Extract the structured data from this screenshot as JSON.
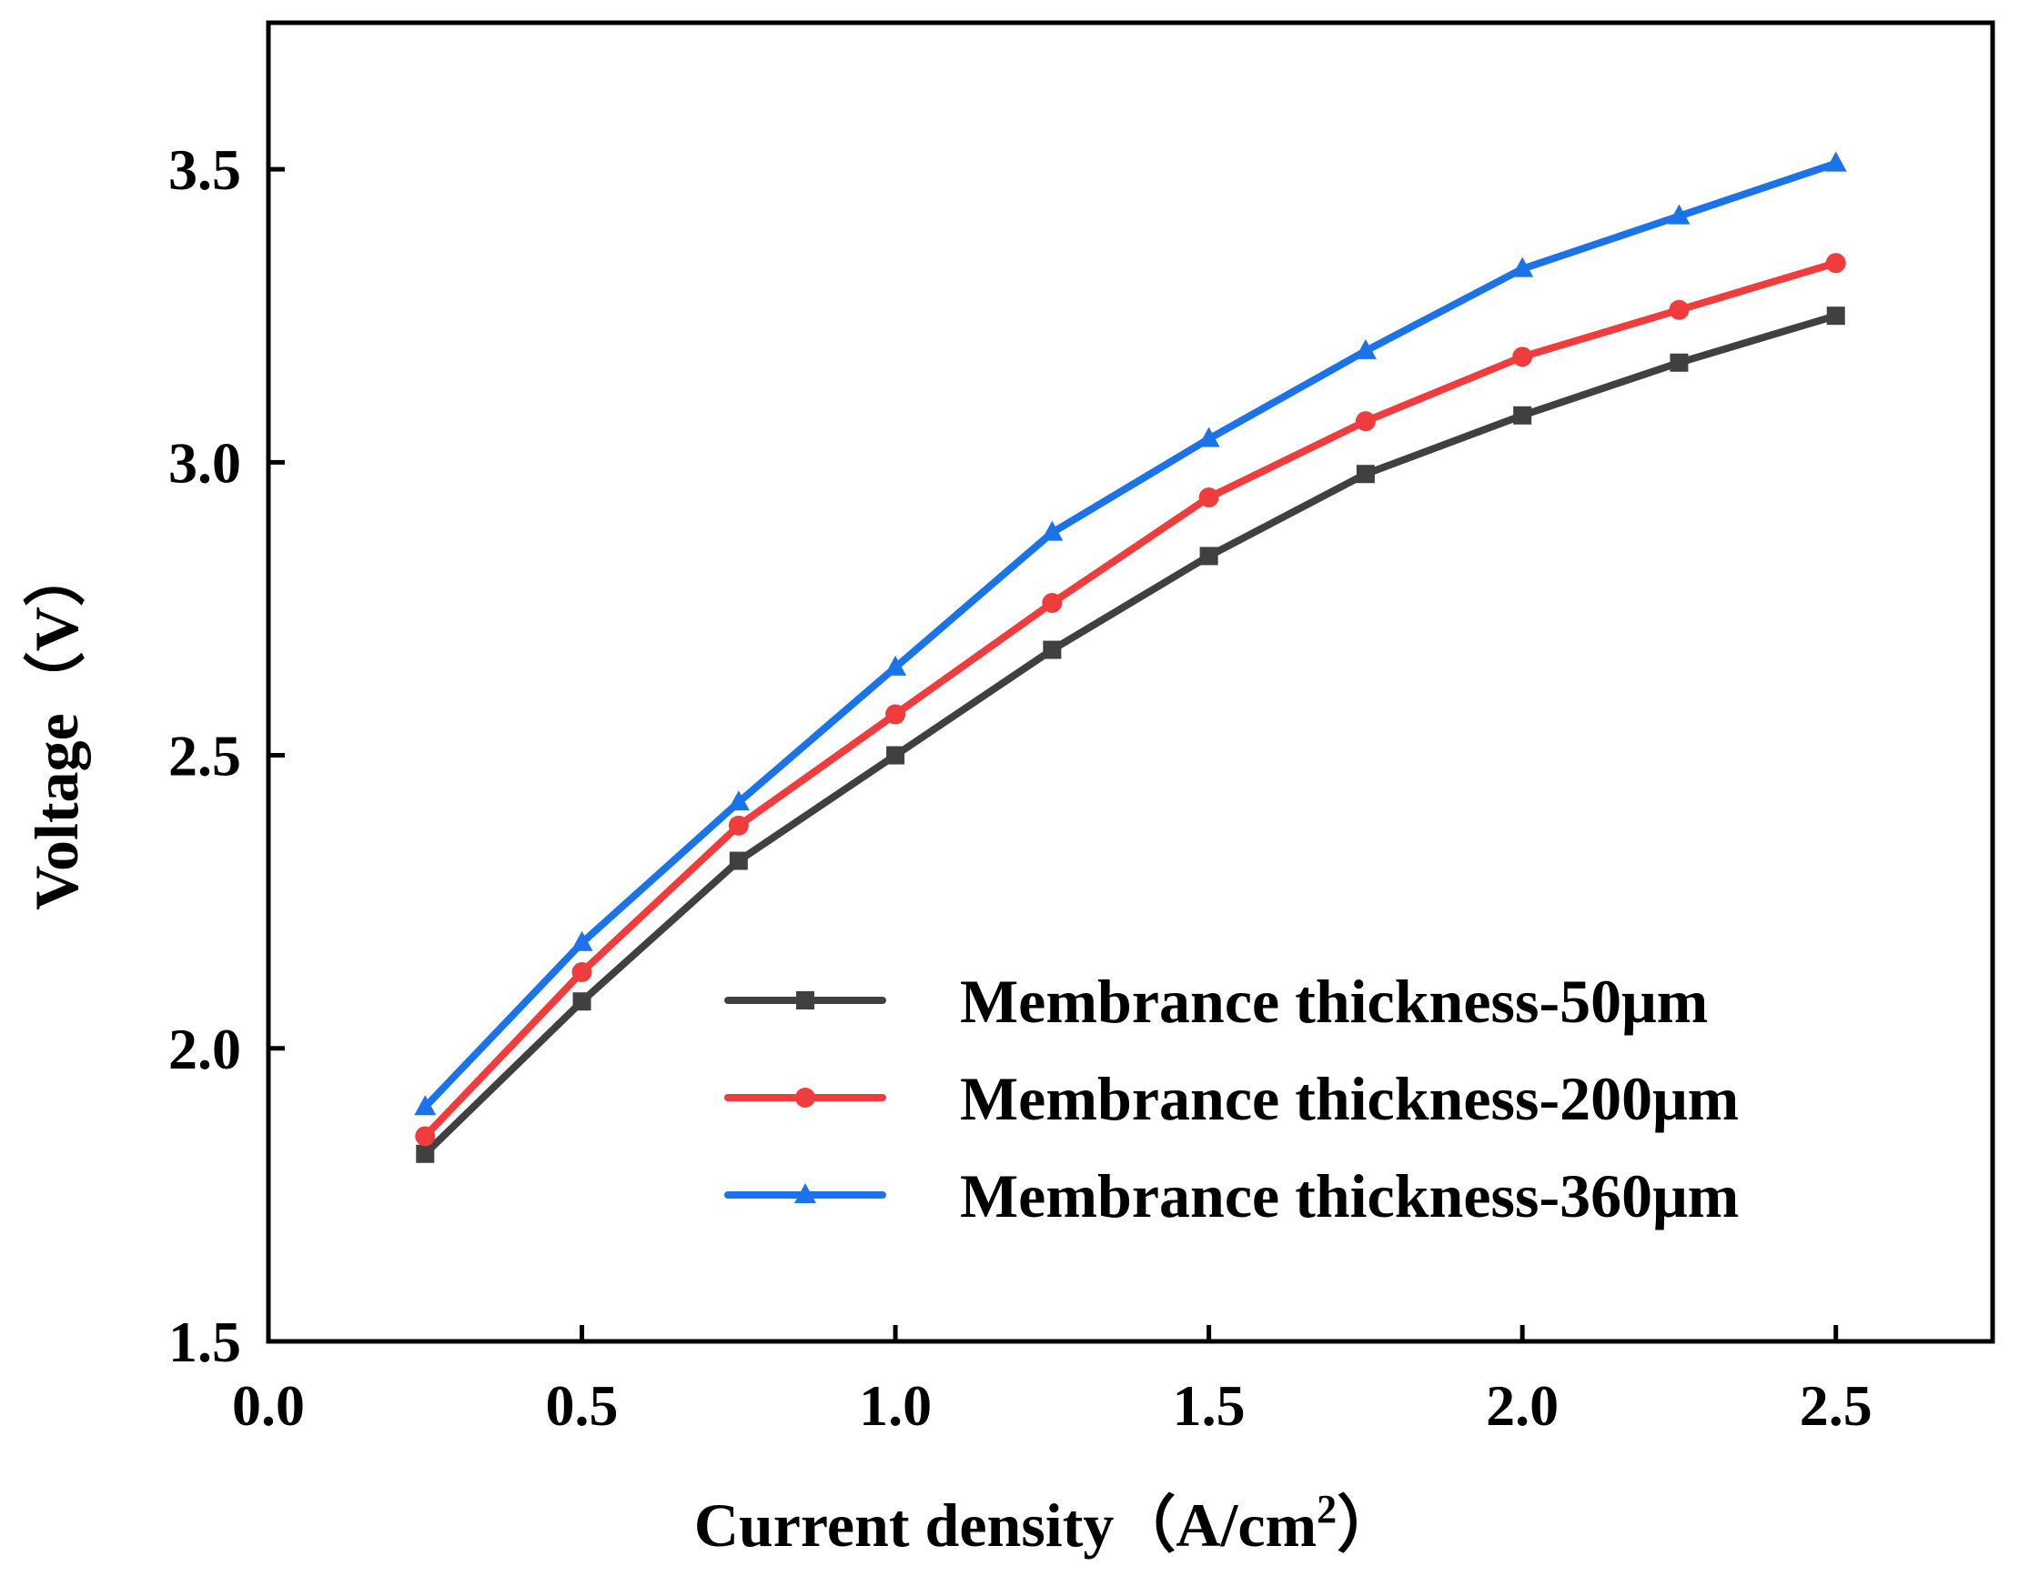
{
  "colors": {
    "series": [
      "#404040",
      "#f03c3c",
      "#1a73e8"
    ],
    "axis": "#000000",
    "background": "#ffffff"
  },
  "chart_data": {
    "type": "line",
    "title": "",
    "xlabel_main": "Current density",
    "xlabel_unit": "（A/cm",
    "xlabel_sup": "2",
    "xlabel_close": "）",
    "ylabel": "Voltage（V）",
    "xlim": [
      0,
      2.75
    ],
    "ylim": [
      1.5,
      3.75
    ],
    "xticks": [
      0.0,
      0.5,
      1.0,
      1.5,
      2.0,
      2.5
    ],
    "xtick_labels": [
      "0.0",
      "0.5",
      "1.0",
      "1.5",
      "2.0",
      "2.5"
    ],
    "yticks": [
      1.5,
      2.0,
      2.5,
      3.0,
      3.5
    ],
    "ytick_labels": [
      "1.5",
      "2.0",
      "2.5",
      "3.0",
      "3.5"
    ],
    "grid": false,
    "legend_position": "bottom-right",
    "x": [
      0.25,
      0.5,
      0.75,
      1.0,
      1.25,
      1.5,
      1.75,
      2.0,
      2.25,
      2.5
    ],
    "series": [
      {
        "name": "Membrance thickness-50μm",
        "marker": "square",
        "values": [
          1.82,
          2.08,
          2.32,
          2.5,
          2.68,
          2.84,
          2.98,
          3.08,
          3.17,
          3.25
        ]
      },
      {
        "name": "Membrance thickness-200μm",
        "marker": "circle",
        "values": [
          1.85,
          2.13,
          2.38,
          2.57,
          2.76,
          2.94,
          3.07,
          3.18,
          3.26,
          3.34
        ]
      },
      {
        "name": "Membrance thickness-360μm",
        "marker": "triangle",
        "values": [
          1.9,
          2.18,
          2.42,
          2.65,
          2.88,
          3.04,
          3.19,
          3.33,
          3.42,
          3.51
        ]
      }
    ]
  }
}
